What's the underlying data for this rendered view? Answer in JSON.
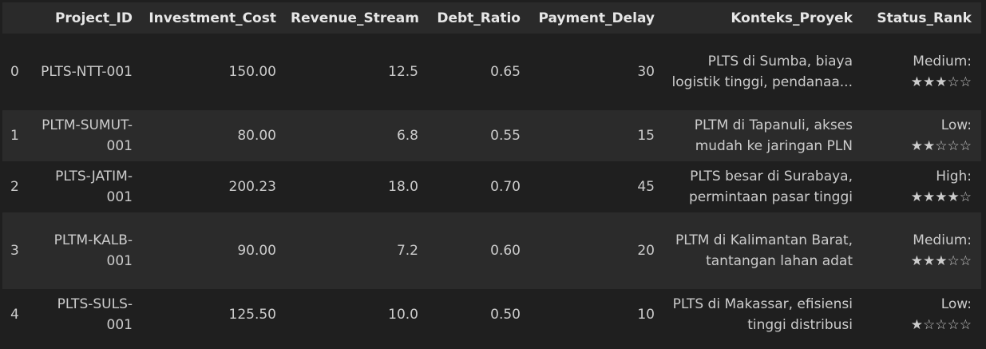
{
  "table": {
    "columns": [
      "",
      "Project_ID",
      "Investment_Cost",
      "Revenue_Stream",
      "Debt_Ratio",
      "Payment_Delay",
      "Konteks_Proyek",
      "Status_Rank"
    ],
    "rows": [
      {
        "index": "0",
        "project_id": "PLTS-NTT-001",
        "investment_cost": "150.00",
        "revenue_stream": "12.5",
        "debt_ratio": "0.65",
        "payment_delay": "30",
        "konteks_proyek": "PLTS di Sumba, biaya logistik tinggi, pendanaa...",
        "status_label": "Medium:",
        "status_stars": "★★★☆☆"
      },
      {
        "index": "1",
        "project_id": "PLTM-SUMUT-001",
        "investment_cost": "80.00",
        "revenue_stream": "6.8",
        "debt_ratio": "0.55",
        "payment_delay": "15",
        "konteks_proyek": "PLTM di Tapanuli, akses mudah ke jaringan PLN",
        "status_label": "Low:",
        "status_stars": "★★☆☆☆"
      },
      {
        "index": "2",
        "project_id": "PLTS-JATIM-001",
        "investment_cost": "200.23",
        "revenue_stream": "18.0",
        "debt_ratio": "0.70",
        "payment_delay": "45",
        "konteks_proyek": "PLTS besar di Surabaya, permintaan pasar tinggi",
        "status_label": "High:",
        "status_stars": "★★★★☆"
      },
      {
        "index": "3",
        "project_id": "PLTM-KALB-001",
        "investment_cost": "90.00",
        "revenue_stream": "7.2",
        "debt_ratio": "0.60",
        "payment_delay": "20",
        "konteks_proyek": "PLTM di Kalimantan Barat, tantangan lahan adat",
        "status_label": "Medium:",
        "status_stars": "★★★☆☆"
      },
      {
        "index": "4",
        "project_id": "PLTS-SULS-001",
        "investment_cost": "125.50",
        "revenue_stream": "10.0",
        "debt_ratio": "0.50",
        "payment_delay": "10",
        "konteks_proyek": "PLTS di Makassar, efisiensi tinggi distribusi",
        "status_label": "Low:",
        "status_stars": "★☆☆☆☆"
      }
    ]
  },
  "colors": {
    "background": "#1f1f1f",
    "header_row": "#2a2a2a",
    "striped_row": "#2b2b2b",
    "text": "#cccccc"
  }
}
